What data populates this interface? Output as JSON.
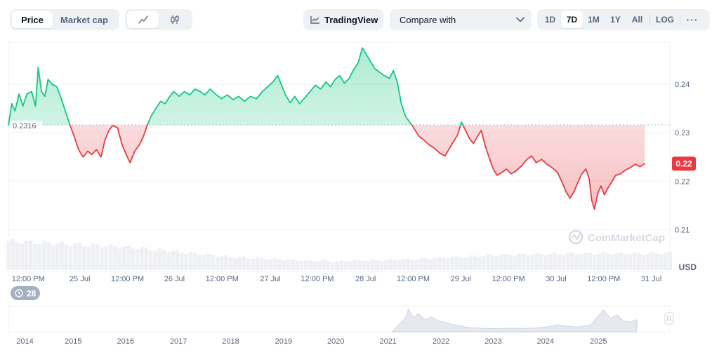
{
  "toolbar": {
    "metric_tabs": [
      {
        "label": "Price",
        "active": true
      },
      {
        "label": "Market cap",
        "active": false
      }
    ],
    "chart_type_icons": [
      "line-chart-icon",
      "candlestick-icon"
    ],
    "tradingview_label": "TradingView",
    "compare_label": "Compare with",
    "ranges": [
      {
        "label": "1D",
        "active": false
      },
      {
        "label": "7D",
        "active": true
      },
      {
        "label": "1M",
        "active": false
      },
      {
        "label": "1Y",
        "active": false
      },
      {
        "label": "All",
        "active": false
      }
    ],
    "log_label": "LOG",
    "more_label": "···"
  },
  "colors": {
    "up": "#16c784",
    "down": "#ea3943",
    "grid": "#eff2f5",
    "text_muted": "#58667e"
  },
  "watermark": "CoinMarketCap",
  "events_badge": "28",
  "chart_data": {
    "type": "area",
    "currency": "USD",
    "baseline": 0.2316,
    "baseline_label": "0.2316",
    "current_price_label": "0.22",
    "current_price": 0.2236,
    "ylim": [
      0.2089,
      0.2487
    ],
    "y_ticks": [
      0.21,
      0.22,
      0.23,
      0.24
    ],
    "y_tick_labels": [
      "0.21",
      "0.22",
      "0.23",
      "0.24"
    ],
    "x_tick_labels": [
      "12:00 PM",
      "25 Jul",
      "12:00 PM",
      "26 Jul",
      "12:00 PM",
      "27 Jul",
      "12:00 PM",
      "28 Jul",
      "12:00 PM",
      "29 Jul",
      "12:00 PM",
      "30 Jul",
      "12:00 PM",
      "31 Jul"
    ],
    "x_tick_pos": [
      0.03,
      0.108,
      0.18,
      0.251,
      0.323,
      0.396,
      0.467,
      0.54,
      0.612,
      0.684,
      0.756,
      0.828,
      0.9,
      0.972
    ],
    "x_range": [
      0,
      1
    ],
    "series_points": [
      [
        0.0,
        0.2316
      ],
      [
        0.005,
        0.236
      ],
      [
        0.01,
        0.2345
      ],
      [
        0.016,
        0.238
      ],
      [
        0.022,
        0.2355
      ],
      [
        0.028,
        0.238
      ],
      [
        0.035,
        0.2385
      ],
      [
        0.041,
        0.2355
      ],
      [
        0.045,
        0.2435
      ],
      [
        0.05,
        0.2385
      ],
      [
        0.055,
        0.2375
      ],
      [
        0.06,
        0.241
      ],
      [
        0.066,
        0.24
      ],
      [
        0.073,
        0.2395
      ],
      [
        0.08,
        0.237
      ],
      [
        0.086,
        0.2345
      ],
      [
        0.093,
        0.2316
      ],
      [
        0.1,
        0.229
      ],
      [
        0.106,
        0.2265
      ],
      [
        0.113,
        0.225
      ],
      [
        0.12,
        0.2262
      ],
      [
        0.126,
        0.2255
      ],
      [
        0.133,
        0.2265
      ],
      [
        0.14,
        0.225
      ],
      [
        0.146,
        0.2285
      ],
      [
        0.152,
        0.2305
      ],
      [
        0.158,
        0.2315
      ],
      [
        0.165,
        0.231
      ],
      [
        0.172,
        0.2275
      ],
      [
        0.178,
        0.2255
      ],
      [
        0.184,
        0.2238
      ],
      [
        0.191,
        0.2262
      ],
      [
        0.198,
        0.2275
      ],
      [
        0.204,
        0.2292
      ],
      [
        0.21,
        0.2316
      ],
      [
        0.216,
        0.2335
      ],
      [
        0.223,
        0.235
      ],
      [
        0.23,
        0.2365
      ],
      [
        0.237,
        0.236
      ],
      [
        0.244,
        0.2375
      ],
      [
        0.25,
        0.2385
      ],
      [
        0.258,
        0.2375
      ],
      [
        0.266,
        0.2385
      ],
      [
        0.274,
        0.2378
      ],
      [
        0.282,
        0.239
      ],
      [
        0.29,
        0.2385
      ],
      [
        0.297,
        0.2378
      ],
      [
        0.305,
        0.239
      ],
      [
        0.313,
        0.238
      ],
      [
        0.322,
        0.237
      ],
      [
        0.331,
        0.2378
      ],
      [
        0.34,
        0.2368
      ],
      [
        0.348,
        0.2375
      ],
      [
        0.357,
        0.2365
      ],
      [
        0.366,
        0.2375
      ],
      [
        0.375,
        0.237
      ],
      [
        0.384,
        0.2385
      ],
      [
        0.392,
        0.2395
      ],
      [
        0.4,
        0.2405
      ],
      [
        0.407,
        0.2418
      ],
      [
        0.413,
        0.2398
      ],
      [
        0.419,
        0.2378
      ],
      [
        0.426,
        0.2362
      ],
      [
        0.433,
        0.2375
      ],
      [
        0.44,
        0.236
      ],
      [
        0.448,
        0.2372
      ],
      [
        0.456,
        0.2385
      ],
      [
        0.464,
        0.2398
      ],
      [
        0.472,
        0.239
      ],
      [
        0.48,
        0.2405
      ],
      [
        0.487,
        0.2395
      ],
      [
        0.494,
        0.241
      ],
      [
        0.501,
        0.2418
      ],
      [
        0.508,
        0.2402
      ],
      [
        0.515,
        0.2412
      ],
      [
        0.522,
        0.243
      ],
      [
        0.529,
        0.2445
      ],
      [
        0.535,
        0.2475
      ],
      [
        0.541,
        0.2462
      ],
      [
        0.547,
        0.2448
      ],
      [
        0.554,
        0.2432
      ],
      [
        0.561,
        0.2425
      ],
      [
        0.568,
        0.2418
      ],
      [
        0.576,
        0.2412
      ],
      [
        0.582,
        0.2428
      ],
      [
        0.588,
        0.2405
      ],
      [
        0.594,
        0.236
      ],
      [
        0.6,
        0.2335
      ],
      [
        0.605,
        0.2325
      ],
      [
        0.61,
        0.2316
      ],
      [
        0.615,
        0.2305
      ],
      [
        0.621,
        0.2292
      ],
      [
        0.628,
        0.2285
      ],
      [
        0.636,
        0.2275
      ],
      [
        0.644,
        0.2268
      ],
      [
        0.652,
        0.2258
      ],
      [
        0.66,
        0.2252
      ],
      [
        0.667,
        0.2268
      ],
      [
        0.673,
        0.2282
      ],
      [
        0.679,
        0.2295
      ],
      [
        0.685,
        0.2322
      ],
      [
        0.691,
        0.2305
      ],
      [
        0.697,
        0.2288
      ],
      [
        0.703,
        0.2278
      ],
      [
        0.709,
        0.2292
      ],
      [
        0.715,
        0.2305
      ],
      [
        0.721,
        0.2272
      ],
      [
        0.727,
        0.2248
      ],
      [
        0.733,
        0.2225
      ],
      [
        0.739,
        0.2212
      ],
      [
        0.746,
        0.2218
      ],
      [
        0.753,
        0.2225
      ],
      [
        0.76,
        0.2215
      ],
      [
        0.768,
        0.2222
      ],
      [
        0.776,
        0.2232
      ],
      [
        0.784,
        0.2245
      ],
      [
        0.791,
        0.2252
      ],
      [
        0.798,
        0.2238
      ],
      [
        0.806,
        0.2245
      ],
      [
        0.814,
        0.2235
      ],
      [
        0.822,
        0.2228
      ],
      [
        0.83,
        0.2218
      ],
      [
        0.837,
        0.2198
      ],
      [
        0.843,
        0.2178
      ],
      [
        0.849,
        0.2165
      ],
      [
        0.855,
        0.2178
      ],
      [
        0.861,
        0.2198
      ],
      [
        0.867,
        0.2215
      ],
      [
        0.873,
        0.2225
      ],
      [
        0.878,
        0.2205
      ],
      [
        0.882,
        0.216
      ],
      [
        0.886,
        0.2142
      ],
      [
        0.891,
        0.2175
      ],
      [
        0.896,
        0.219
      ],
      [
        0.901,
        0.2172
      ],
      [
        0.906,
        0.2185
      ],
      [
        0.912,
        0.2198
      ],
      [
        0.918,
        0.2212
      ],
      [
        0.925,
        0.2215
      ],
      [
        0.932,
        0.2222
      ],
      [
        0.94,
        0.2228
      ],
      [
        0.948,
        0.2235
      ],
      [
        0.955,
        0.223
      ],
      [
        0.962,
        0.2236
      ]
    ],
    "volume_levels": [
      0.95,
      0.9,
      0.85,
      0.8,
      0.72,
      0.62,
      0.5,
      0.42,
      0.36,
      0.32,
      0.3,
      0.32,
      0.35,
      0.4,
      0.45,
      0.5,
      0.52,
      0.54,
      0.55,
      0.55,
      0.56
    ],
    "navigator": {
      "year_labels": [
        "2014",
        "2015",
        "2016",
        "2017",
        "2018",
        "2019",
        "2020",
        "2021",
        "2022",
        "2023",
        "2024",
        "2025"
      ],
      "year_pos": [
        0.025,
        0.098,
        0.177,
        0.257,
        0.336,
        0.416,
        0.495,
        0.574,
        0.654,
        0.733,
        0.812,
        0.892
      ],
      "history_points": [
        [
          0.58,
          0.0
        ],
        [
          0.59,
          0.3
        ],
        [
          0.6,
          0.55
        ],
        [
          0.605,
          0.95
        ],
        [
          0.612,
          0.6
        ],
        [
          0.62,
          0.75
        ],
        [
          0.63,
          0.5
        ],
        [
          0.64,
          0.62
        ],
        [
          0.65,
          0.45
        ],
        [
          0.66,
          0.4
        ],
        [
          0.67,
          0.32
        ],
        [
          0.68,
          0.26
        ],
        [
          0.69,
          0.2
        ],
        [
          0.7,
          0.17
        ],
        [
          0.72,
          0.14
        ],
        [
          0.74,
          0.13
        ],
        [
          0.76,
          0.15
        ],
        [
          0.78,
          0.14
        ],
        [
          0.8,
          0.16
        ],
        [
          0.82,
          0.22
        ],
        [
          0.83,
          0.3
        ],
        [
          0.84,
          0.24
        ],
        [
          0.86,
          0.2
        ],
        [
          0.88,
          0.28
        ],
        [
          0.89,
          0.6
        ],
        [
          0.9,
          0.9
        ],
        [
          0.91,
          0.55
        ],
        [
          0.92,
          0.7
        ],
        [
          0.93,
          0.45
        ],
        [
          0.94,
          0.4
        ],
        [
          0.95,
          0.5
        ]
      ]
    }
  }
}
